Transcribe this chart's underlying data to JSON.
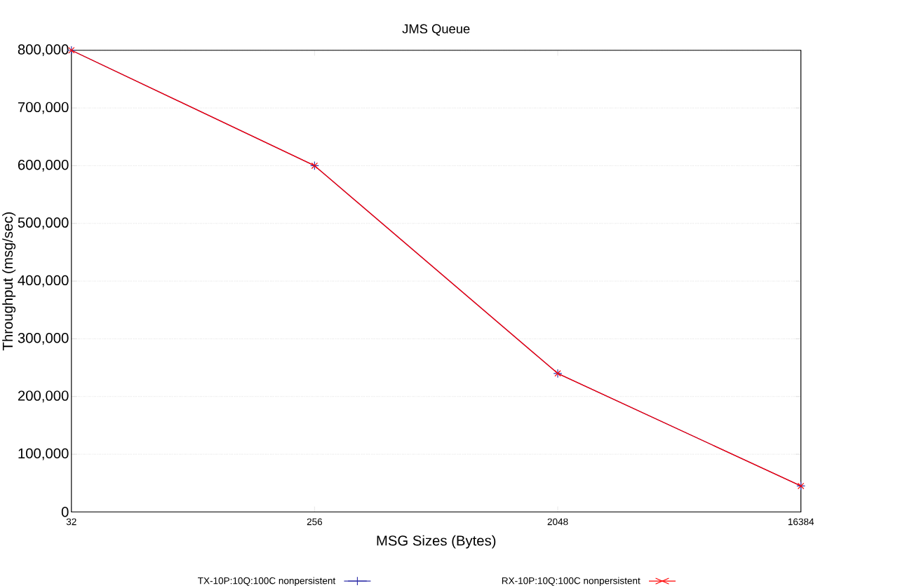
{
  "chart_data": {
    "type": "line",
    "title": "JMS Queue",
    "xlabel": "MSG Sizes (Bytes)",
    "ylabel": "Throughput (msg/sec)",
    "categories": [
      "32",
      "256",
      "2048",
      "16384"
    ],
    "series": [
      {
        "name": "TX-10P:10Q:100C nonpersistent",
        "color": "#3333aa",
        "marker": "plus",
        "values": [
          800000,
          600000,
          240000,
          45000
        ]
      },
      {
        "name": "RX-10P:10Q:100C nonpersistent",
        "color": "#ff0000",
        "marker": "cross",
        "values": [
          800000,
          600000,
          240000,
          45000
        ]
      }
    ],
    "ylim": [
      0,
      800000
    ],
    "yticks": [
      {
        "value": 0,
        "label": "0"
      },
      {
        "value": 100000,
        "label": "100,000"
      },
      {
        "value": 200000,
        "label": "200,000"
      },
      {
        "value": 300000,
        "label": "300,000"
      },
      {
        "value": 400000,
        "label": "400,000"
      },
      {
        "value": 500000,
        "label": "500,000"
      },
      {
        "value": 600000,
        "label": "600,000"
      },
      {
        "value": 700000,
        "label": "700,000"
      },
      {
        "value": 800000,
        "label": "800,000"
      }
    ],
    "grid": "y",
    "legend": "bottom",
    "line_style": "solid"
  }
}
